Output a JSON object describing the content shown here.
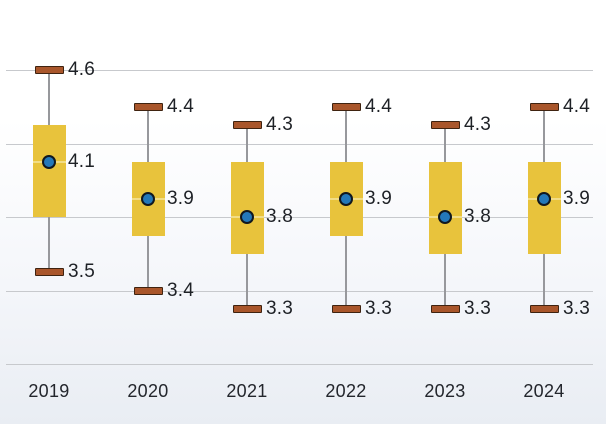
{
  "chart_data": {
    "type": "boxplot",
    "title": "",
    "xlabel": "",
    "ylabel": "",
    "categories": [
      "2019",
      "2020",
      "2021",
      "2022",
      "2023",
      "2024"
    ],
    "series": [
      {
        "category": "2019",
        "max": 4.6,
        "box_top": 4.3,
        "mean": 4.1,
        "box_bottom": 3.8,
        "min": 3.5
      },
      {
        "category": "2020",
        "max": 4.4,
        "box_top": 4.1,
        "mean": 3.9,
        "box_bottom": 3.7,
        "min": 3.4
      },
      {
        "category": "2021",
        "max": 4.3,
        "box_top": 4.1,
        "mean": 3.8,
        "box_bottom": 3.6,
        "min": 3.3
      },
      {
        "category": "2022",
        "max": 4.4,
        "box_top": 4.1,
        "mean": 3.9,
        "box_bottom": 3.7,
        "min": 3.3
      },
      {
        "category": "2023",
        "max": 4.3,
        "box_top": 4.1,
        "mean": 3.8,
        "box_bottom": 3.6,
        "min": 3.3
      },
      {
        "category": "2024",
        "max": 4.4,
        "box_top": 4.1,
        "mean": 3.9,
        "box_bottom": 3.6,
        "min": 3.3
      }
    ],
    "labeled_values": [
      "max",
      "mean",
      "min"
    ],
    "gridline_values": [
      4.6,
      4.2,
      3.8,
      3.4,
      3.0
    ],
    "ylim": [
      3.0,
      4.6
    ],
    "grid": true,
    "legend": false
  },
  "colors": {
    "box_fill": "#e8c33c",
    "box_median_line": "#f2dd86",
    "cap_fill": "#a9562b",
    "cap_border": "#3f2310",
    "dot_fill": "#2478b9",
    "dot_border": "#11181f",
    "whisker": "#97989c",
    "gridline": "#c7c9cd",
    "label_text": "#1e2126",
    "background_top": "#ffffff",
    "background_bottom": "#e9edf3"
  }
}
